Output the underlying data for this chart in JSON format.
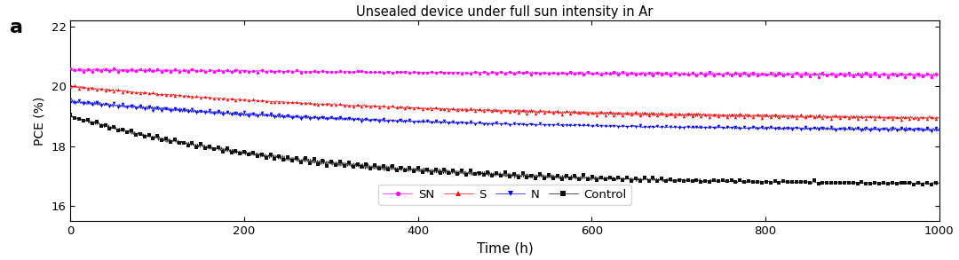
{
  "title": "Unsealed device under full sun intensity in Ar",
  "xlabel": "Time (h)",
  "ylabel": "PCE (%)",
  "panel_label": "a",
  "xlim": [
    0,
    1000
  ],
  "ylim": [
    15.5,
    22.2
  ],
  "yticks": [
    16,
    18,
    20,
    22
  ],
  "xticks": [
    0,
    200,
    400,
    600,
    800,
    1000
  ],
  "legend_labels": [
    "SN",
    "S",
    "N",
    "Control"
  ],
  "colors": {
    "SN": "#FF00FF",
    "S": "#EE1111",
    "N": "#0000EE",
    "Control": "#111111"
  },
  "n_points": 1000,
  "SN": {
    "start": 20.55,
    "end": 20.1,
    "noise": 0.045,
    "decay_rate": 0.5
  },
  "S": {
    "start": 20.0,
    "end": 18.85,
    "noise": 0.045,
    "decay_rate": 2.5
  },
  "N": {
    "start": 19.5,
    "end": 18.5,
    "noise": 0.045,
    "decay_rate": 2.8
  },
  "Control": {
    "start": 19.0,
    "end": 16.7,
    "noise": 0.06,
    "decay_rate": 3.8
  },
  "figsize": [
    10.8,
    2.93
  ],
  "dpi": 100,
  "background_color": "#ffffff",
  "marker_size": 2.5,
  "line_width": 0.5,
  "markevery": 5
}
